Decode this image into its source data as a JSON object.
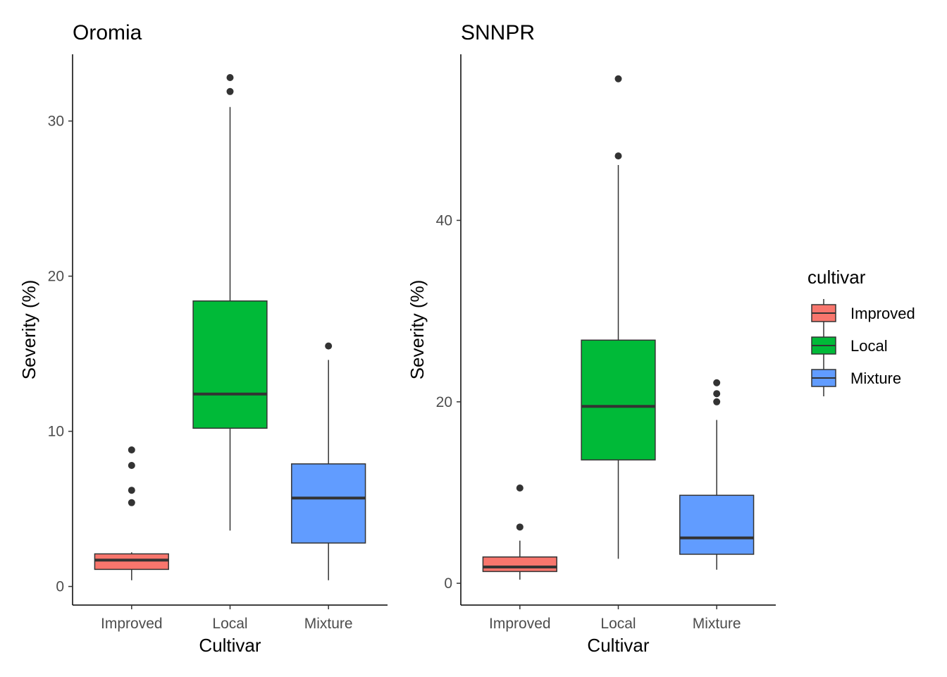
{
  "legend": {
    "title": "cultivar",
    "entries": [
      {
        "label": "Improved",
        "color": "#F8766D"
      },
      {
        "label": "Local",
        "color": "#00BA38"
      },
      {
        "label": "Mixture",
        "color": "#619CFF"
      }
    ]
  },
  "chart_data": [
    {
      "type": "box",
      "title": "Oromia",
      "xlabel": "Cultivar",
      "ylabel": "Severity (%)",
      "categories": [
        "Improved",
        "Local",
        "Mixture"
      ],
      "ylim": [
        -1.2,
        34.3
      ],
      "yticks": [
        0,
        10,
        20,
        30
      ],
      "grid": false,
      "boxes": [
        {
          "category": "Improved",
          "min": 0.4,
          "q1": 1.1,
          "median": 1.7,
          "q3": 2.1,
          "max": 2.2,
          "outliers": [
            5.4,
            6.2,
            7.8,
            8.8
          ]
        },
        {
          "category": "Local",
          "min": 3.6,
          "q1": 10.2,
          "median": 12.4,
          "q3": 18.4,
          "max": 30.9,
          "outliers": [
            31.9,
            32.8
          ]
        },
        {
          "category": "Mixture",
          "min": 0.4,
          "q1": 2.8,
          "median": 5.7,
          "q3": 7.9,
          "max": 14.6,
          "outliers": [
            15.5
          ]
        }
      ]
    },
    {
      "type": "box",
      "title": "SNNPR",
      "xlabel": "Cultivar",
      "ylabel": "Severity (%)",
      "categories": [
        "Improved",
        "Local",
        "Mixture"
      ],
      "ylim": [
        -2.4,
        58.3
      ],
      "yticks": [
        0,
        20,
        40
      ],
      "grid": false,
      "boxes": [
        {
          "category": "Improved",
          "min": 0.4,
          "q1": 1.3,
          "median": 1.8,
          "q3": 2.9,
          "max": 4.7,
          "outliers": [
            6.2,
            10.5
          ]
        },
        {
          "category": "Local",
          "min": 2.7,
          "q1": 13.6,
          "median": 19.5,
          "q3": 26.8,
          "max": 46.1,
          "outliers": [
            47.1,
            55.6
          ]
        },
        {
          "category": "Mixture",
          "min": 1.5,
          "q1": 3.2,
          "median": 5.0,
          "q3": 9.7,
          "max": 18.0,
          "outliers": [
            20.0,
            20.9,
            22.1
          ]
        }
      ]
    }
  ]
}
